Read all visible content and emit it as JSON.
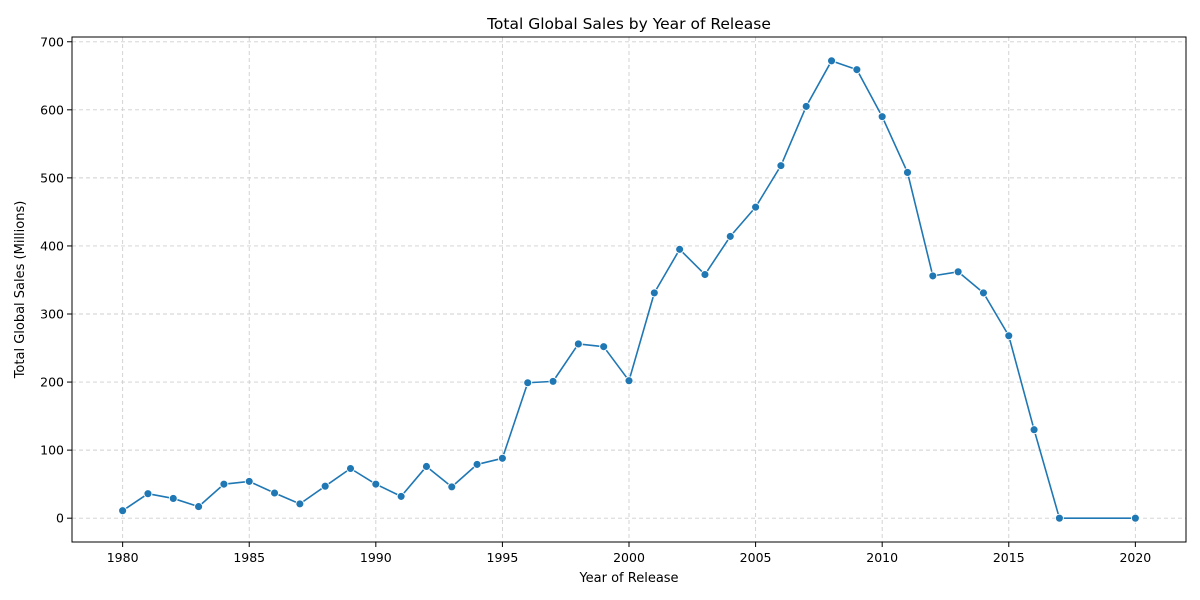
{
  "chart_data": {
    "type": "line",
    "title": "Total Global Sales by Year of Release",
    "xlabel": "Year of Release",
    "ylabel": "Total Global Sales (Millions)",
    "xlim": [
      1978,
      2022
    ],
    "ylim": [
      -35,
      707
    ],
    "xticks": [
      1980,
      1985,
      1990,
      1995,
      2000,
      2005,
      2010,
      2015,
      2020
    ],
    "yticks": [
      0,
      100,
      200,
      300,
      400,
      500,
      600,
      700
    ],
    "grid": true,
    "line_color": "#1f77b4",
    "marker": "circle",
    "x": [
      1980,
      1981,
      1982,
      1983,
      1984,
      1985,
      1986,
      1987,
      1988,
      1989,
      1990,
      1991,
      1992,
      1993,
      1994,
      1995,
      1996,
      1997,
      1998,
      1999,
      2000,
      2001,
      2002,
      2003,
      2004,
      2005,
      2006,
      2007,
      2008,
      2009,
      2010,
      2011,
      2012,
      2013,
      2014,
      2015,
      2016,
      2017,
      2020
    ],
    "y": [
      11,
      36,
      29,
      17,
      50,
      54,
      37,
      21,
      47,
      73,
      50,
      32,
      76,
      46,
      79,
      88,
      199,
      201,
      256,
      252,
      202,
      331,
      395,
      358,
      414,
      457,
      518,
      605,
      672,
      659,
      590,
      508,
      356,
      362,
      331,
      268,
      130,
      0,
      0
    ]
  }
}
